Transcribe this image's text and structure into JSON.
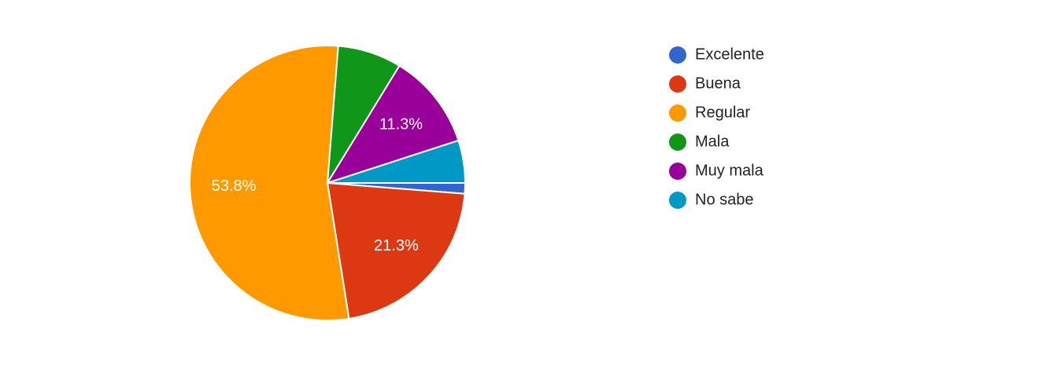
{
  "chart_data": {
    "type": "pie",
    "categories": [
      "Excelente",
      "Buena",
      "Regular",
      "Mala",
      "Muy mala",
      "No sabe"
    ],
    "values": [
      1.25,
      21.25,
      53.75,
      7.5,
      11.25,
      5
    ],
    "value_labels": [
      null,
      "21.3%",
      "53.8%",
      null,
      "11.3%",
      null
    ],
    "colors": [
      "#3366cc",
      "#dc3912",
      "#ff9900",
      "#109618",
      "#990099",
      "#0099c6"
    ],
    "legend": "right"
  }
}
